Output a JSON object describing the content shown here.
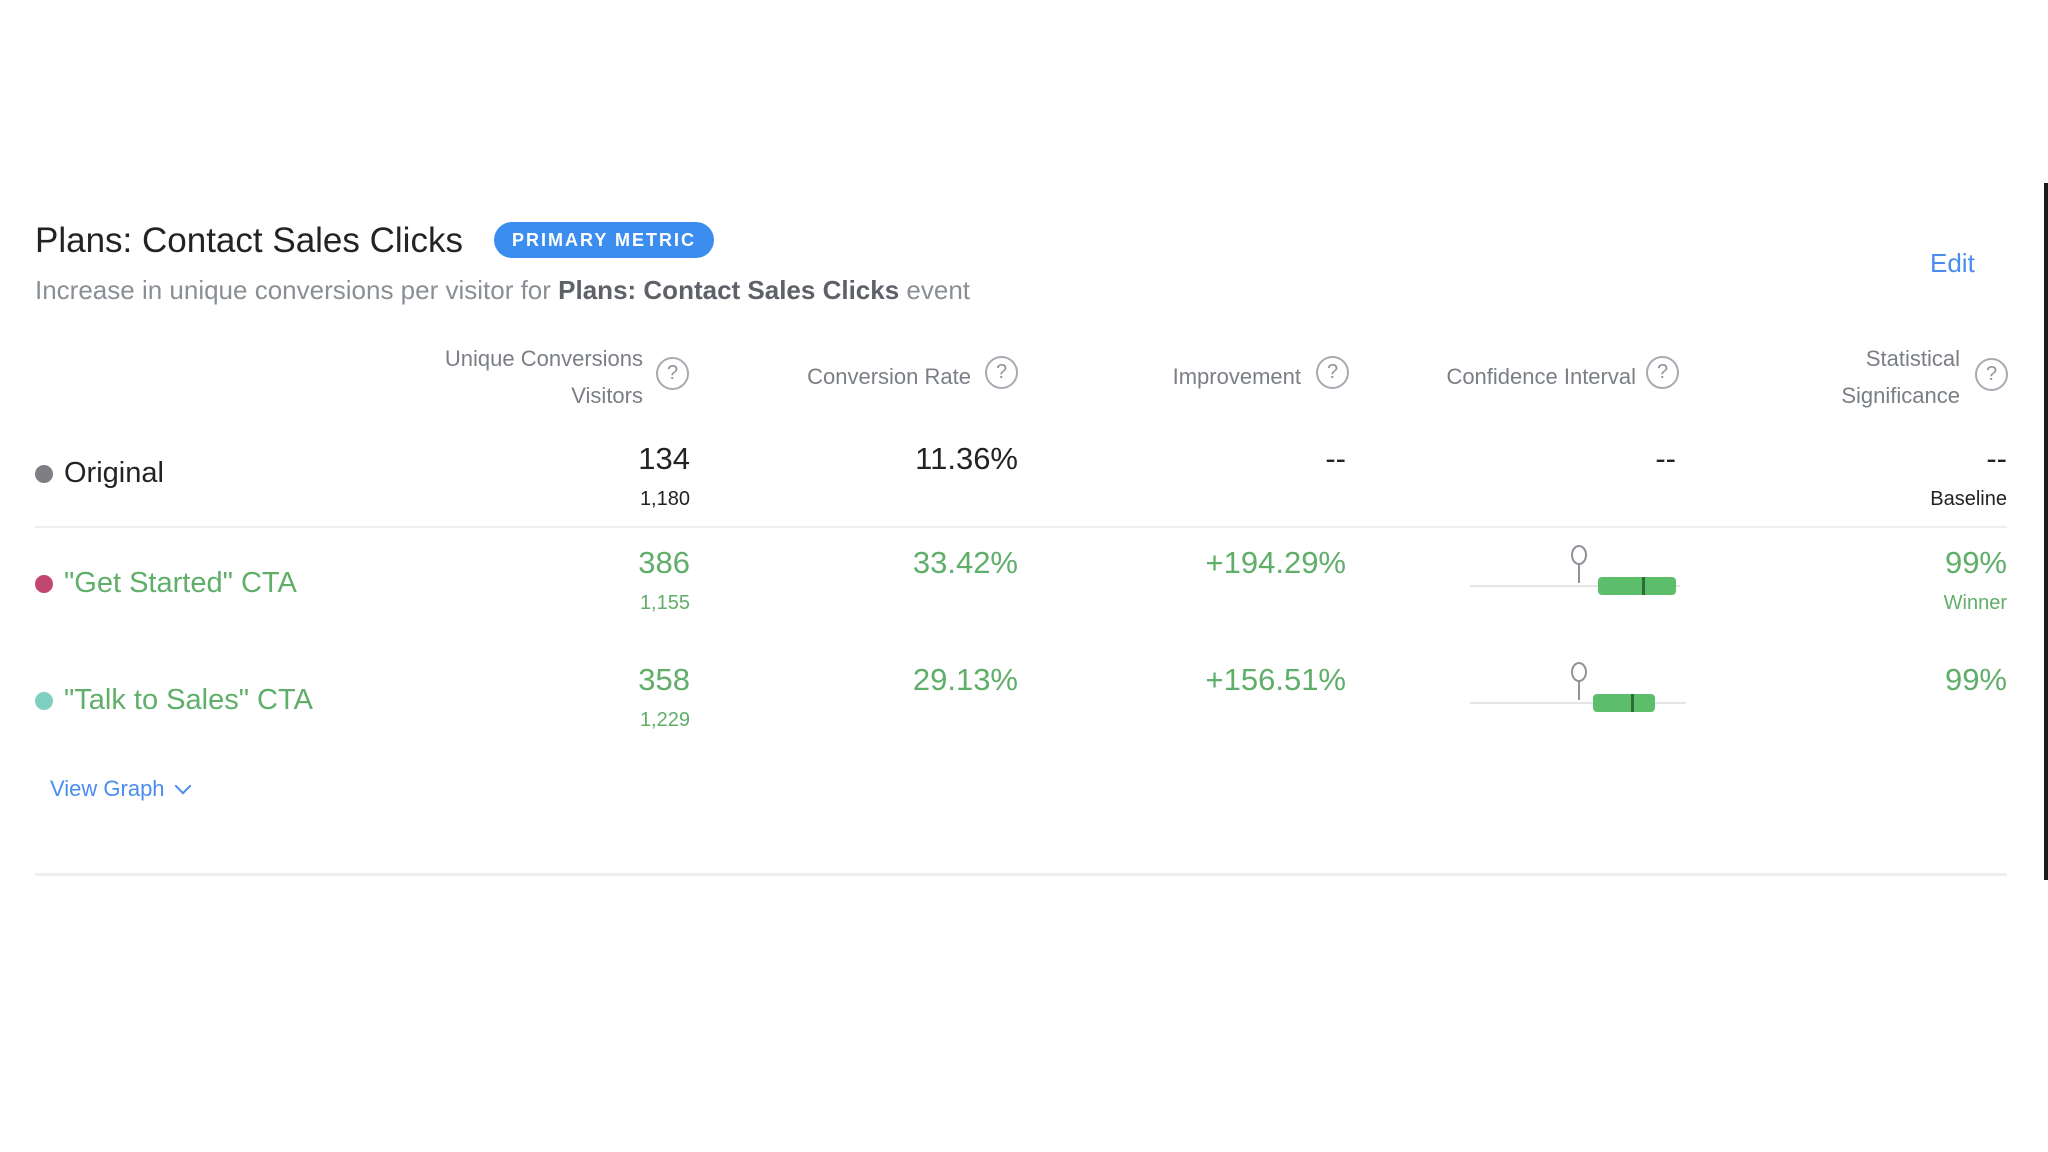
{
  "header": {
    "title": "Plans: Contact Sales Clicks",
    "badge": "PRIMARY METRIC",
    "subtitle_prefix": "Increase in unique conversions per visitor for ",
    "subtitle_event": "Plans: Contact Sales Clicks",
    "subtitle_suffix": " event",
    "edit_label": "Edit"
  },
  "columns": {
    "unique_conversions_line1": "Unique Conversions",
    "unique_conversions_line2": "Visitors",
    "conversion_rate": "Conversion Rate",
    "improvement": "Improvement",
    "confidence_interval": "Confidence Interval",
    "significance_line1": "Statistical",
    "significance_line2": "Significance",
    "help_glyph": "?"
  },
  "rows": [
    {
      "name": "Original",
      "dot_color": "#7d7f84",
      "conversions": "134",
      "visitors": "1,180",
      "conversion_rate": "11.36%",
      "improvement": "--",
      "confidence_interval": "--",
      "significance": "--",
      "significance_note": "Baseline"
    },
    {
      "name": "\"Get Started\" CTA",
      "dot_color": "#c2466e",
      "conversions": "386",
      "visitors": "1,155",
      "conversion_rate": "33.42%",
      "improvement": "+194.29%",
      "significance": "99%",
      "significance_note": "Winner"
    },
    {
      "name": "\"Talk to Sales\" CTA",
      "dot_color": "#7fcfc0",
      "conversions": "358",
      "visitors": "1,229",
      "conversion_rate": "29.13%",
      "improvement": "+156.51%",
      "significance": "99%"
    }
  ],
  "footer": {
    "view_graph_label": "View Graph"
  },
  "colors": {
    "accent": "#4a8df0",
    "badge_bg": "#3c8df0",
    "positive": "#5fae69",
    "ci_bar": "#5cbd6a"
  },
  "icons": [
    "help-icon",
    "chevron-down-icon"
  ]
}
